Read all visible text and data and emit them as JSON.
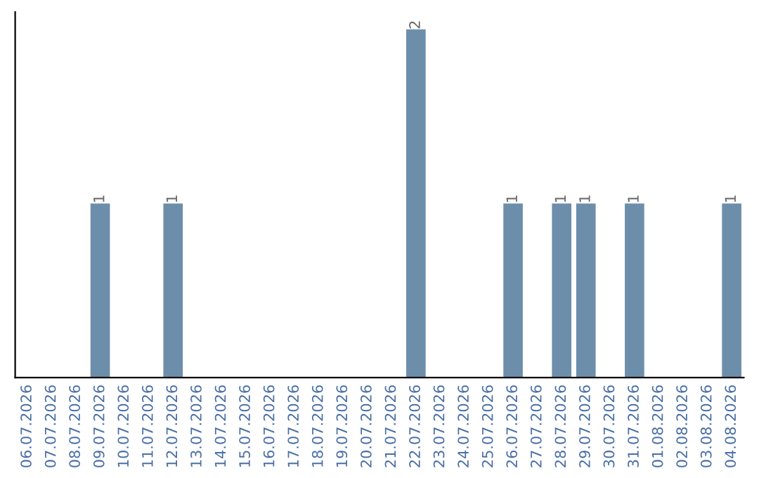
{
  "chart_data": {
    "type": "bar",
    "categories": [
      "06.07.2026",
      "07.07.2026",
      "08.07.2026",
      "09.07.2026",
      "10.07.2026",
      "11.07.2026",
      "12.07.2026",
      "13.07.2026",
      "14.07.2026",
      "15.07.2026",
      "16.07.2026",
      "17.07.2026",
      "18.07.2026",
      "19.07.2026",
      "20.07.2026",
      "21.07.2026",
      "22.07.2026",
      "23.07.2026",
      "24.07.2026",
      "25.07.2026",
      "26.07.2026",
      "27.07.2026",
      "28.07.2026",
      "29.07.2026",
      "30.07.2026",
      "31.07.2026",
      "01.08.2026",
      "02.08.2026",
      "03.08.2026",
      "04.08.2026"
    ],
    "values": [
      0,
      0,
      0,
      1,
      0,
      0,
      1,
      0,
      0,
      0,
      0,
      0,
      0,
      0,
      0,
      0,
      2,
      0,
      0,
      0,
      1,
      0,
      1,
      1,
      0,
      1,
      0,
      0,
      0,
      1
    ],
    "value_labels": [
      null,
      null,
      null,
      "1",
      null,
      null,
      "1",
      null,
      null,
      null,
      null,
      null,
      null,
      null,
      null,
      null,
      "2",
      null,
      null,
      null,
      "1",
      null,
      "1",
      "1",
      null,
      "1",
      null,
      null,
      null,
      "1"
    ],
    "color": "#6d8eab",
    "tick_labels": "x",
    "grid": false,
    "legend": false
  }
}
